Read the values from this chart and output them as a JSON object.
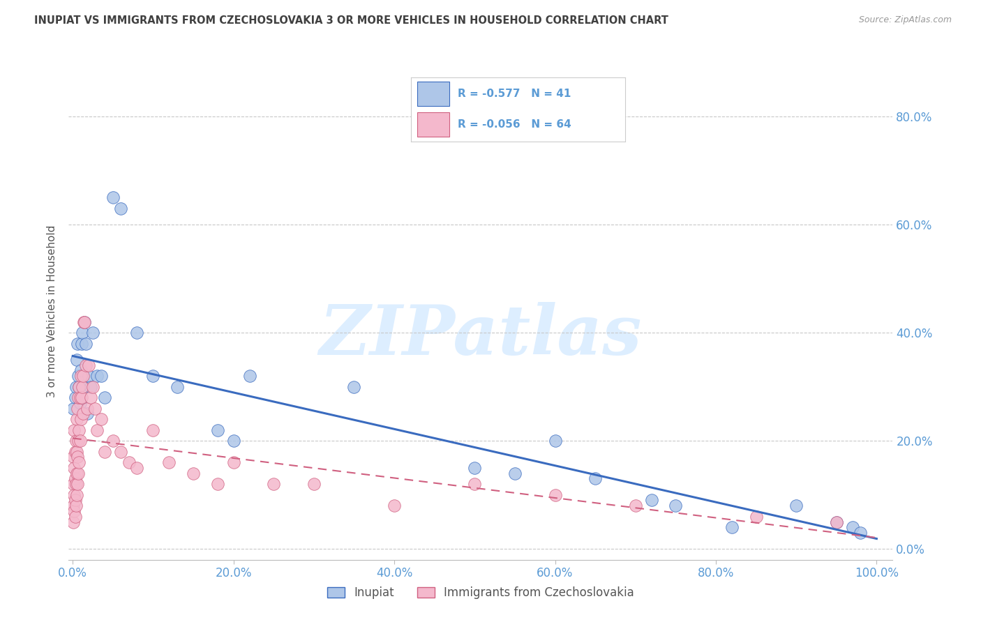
{
  "title": "INUPIAT VS IMMIGRANTS FROM CZECHOSLOVAKIA 3 OR MORE VEHICLES IN HOUSEHOLD CORRELATION CHART",
  "source": "Source: ZipAtlas.com",
  "ylabel": "3 or more Vehicles in Household",
  "legend_label1": "Inupiat",
  "legend_label2": "Immigrants from Czechoslovakia",
  "R1": -0.577,
  "N1": 41,
  "R2": -0.056,
  "N2": 64,
  "color_blue": "#aec6e8",
  "color_pink": "#f4b8cc",
  "line_blue": "#3a6bbf",
  "line_pink": "#d06080",
  "title_color": "#404040",
  "axis_color": "#5b9bd5",
  "grid_color": "#c8c8c8",
  "background": "#ffffff",
  "blue_x": [
    0.001,
    0.003,
    0.004,
    0.005,
    0.006,
    0.007,
    0.008,
    0.009,
    0.01,
    0.011,
    0.012,
    0.013,
    0.015,
    0.016,
    0.018,
    0.02,
    0.022,
    0.025,
    0.03,
    0.035,
    0.04,
    0.05,
    0.06,
    0.08,
    0.1,
    0.13,
    0.18,
    0.2,
    0.22,
    0.35,
    0.5,
    0.55,
    0.6,
    0.65,
    0.72,
    0.75,
    0.82,
    0.9,
    0.95,
    0.97,
    0.98
  ],
  "blue_y": [
    0.26,
    0.28,
    0.3,
    0.35,
    0.38,
    0.32,
    0.3,
    0.27,
    0.33,
    0.38,
    0.4,
    0.3,
    0.42,
    0.38,
    0.25,
    0.32,
    0.3,
    0.4,
    0.32,
    0.32,
    0.28,
    0.65,
    0.63,
    0.4,
    0.32,
    0.3,
    0.22,
    0.2,
    0.32,
    0.3,
    0.15,
    0.14,
    0.2,
    0.13,
    0.09,
    0.08,
    0.04,
    0.08,
    0.05,
    0.04,
    0.03
  ],
  "pink_x": [
    0.001,
    0.001,
    0.001,
    0.001,
    0.002,
    0.002,
    0.002,
    0.002,
    0.003,
    0.003,
    0.003,
    0.003,
    0.004,
    0.004,
    0.004,
    0.005,
    0.005,
    0.005,
    0.005,
    0.006,
    0.006,
    0.006,
    0.007,
    0.007,
    0.007,
    0.008,
    0.008,
    0.008,
    0.009,
    0.009,
    0.01,
    0.01,
    0.011,
    0.012,
    0.013,
    0.013,
    0.014,
    0.015,
    0.016,
    0.018,
    0.02,
    0.022,
    0.025,
    0.028,
    0.03,
    0.035,
    0.04,
    0.05,
    0.06,
    0.07,
    0.08,
    0.1,
    0.12,
    0.15,
    0.18,
    0.2,
    0.25,
    0.3,
    0.4,
    0.5,
    0.6,
    0.7,
    0.85,
    0.95
  ],
  "pink_y": [
    0.05,
    0.08,
    0.12,
    0.17,
    0.07,
    0.1,
    0.15,
    0.22,
    0.06,
    0.09,
    0.13,
    0.18,
    0.08,
    0.12,
    0.2,
    0.1,
    0.14,
    0.18,
    0.24,
    0.12,
    0.17,
    0.26,
    0.14,
    0.2,
    0.28,
    0.16,
    0.22,
    0.3,
    0.2,
    0.28,
    0.24,
    0.32,
    0.28,
    0.3,
    0.32,
    0.25,
    0.42,
    0.42,
    0.34,
    0.26,
    0.34,
    0.28,
    0.3,
    0.26,
    0.22,
    0.24,
    0.18,
    0.2,
    0.18,
    0.16,
    0.15,
    0.22,
    0.16,
    0.14,
    0.12,
    0.16,
    0.12,
    0.12,
    0.08,
    0.12,
    0.1,
    0.08,
    0.06,
    0.05
  ],
  "xlim": [
    -0.005,
    1.02
  ],
  "ylim": [
    -0.02,
    0.9
  ],
  "xticks": [
    0.0,
    0.2,
    0.4,
    0.6,
    0.8,
    1.0
  ],
  "yticks": [
    0.0,
    0.2,
    0.4,
    0.6,
    0.8
  ],
  "watermark": "ZIPatlas",
  "watermark_color": "#ddeeff"
}
